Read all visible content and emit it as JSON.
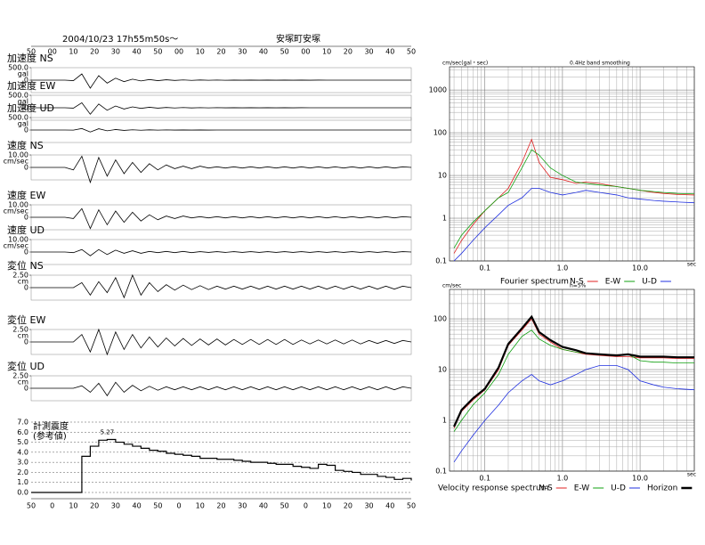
{
  "chart_data": [
    {
      "type": "waveform",
      "title": "2004/10/23 17h55m50s～",
      "subtitle": "安塚町安塚",
      "categories": [
        "50",
        "00",
        "10",
        "20",
        "30",
        "40",
        "50",
        "00",
        "10",
        "20",
        "30",
        "40",
        "50",
        "00",
        "10",
        "20",
        "30",
        "40",
        "50"
      ],
      "xlim": [
        0,
        180
      ],
      "x": [
        0,
        4,
        8,
        12,
        16,
        20,
        24,
        28,
        32,
        36,
        40,
        44,
        48,
        52,
        56,
        60,
        64,
        68,
        72,
        76,
        80,
        84,
        88,
        92,
        96,
        100,
        104,
        108,
        112,
        116,
        120,
        124,
        128,
        132,
        136,
        140,
        144,
        148,
        152,
        156,
        160,
        164,
        168,
        172,
        176,
        180
      ],
      "series": [
        {
          "name": "加速度 NS",
          "unit": "gal",
          "color": "#000000",
          "ylim": [
            -500,
            500
          ],
          "yticks": [
            0,
            {
              "value": 500,
              "label": "500.0"
            }
          ],
          "values": [
            0,
            0,
            0,
            0,
            0,
            -20,
            250,
            -320,
            180,
            -120,
            80,
            -60,
            40,
            -30,
            25,
            -20,
            15,
            -12,
            10,
            -8,
            6,
            -5,
            4,
            -4,
            3,
            -3,
            3,
            -2,
            2,
            -2,
            2,
            -2,
            2,
            -2,
            2,
            -1,
            1,
            -1,
            1,
            -1,
            1,
            -1,
            1,
            -1,
            1,
            0
          ]
        },
        {
          "name": "加速度 EW",
          "unit": "gal",
          "color": "#000000",
          "ylim": [
            -500,
            500
          ],
          "yticks": [
            0,
            {
              "value": 500,
              "label": "500.0"
            }
          ],
          "values": [
            0,
            0,
            0,
            0,
            0,
            -15,
            200,
            -260,
            150,
            -100,
            70,
            -50,
            35,
            -25,
            20,
            -15,
            12,
            -10,
            8,
            -6,
            5,
            -4,
            4,
            -3,
            3,
            -3,
            2,
            -2,
            2,
            -2,
            2,
            -2,
            2,
            -1,
            1,
            -1,
            1,
            -1,
            1,
            -1,
            1,
            -1,
            1,
            -1,
            1,
            0
          ]
        },
        {
          "name": "加速度 UD",
          "unit": "gal",
          "color": "#000000",
          "ylim": [
            -500,
            500
          ],
          "yticks": [
            0,
            {
              "value": 500,
              "label": "500.0"
            }
          ],
          "values": [
            0,
            0,
            0,
            0,
            0,
            -5,
            60,
            -80,
            50,
            -30,
            20,
            -15,
            10,
            -8,
            6,
            -5,
            4,
            -3,
            3,
            -2,
            2,
            -2,
            1,
            -1,
            1,
            -1,
            1,
            -1,
            1,
            -1,
            1,
            -1,
            1,
            -1,
            1,
            -1,
            1,
            -1,
            1,
            -1,
            1,
            -1,
            1,
            -1,
            1,
            0
          ]
        },
        {
          "name": "速度 NS",
          "unit": "cm/sec",
          "color": "#000000",
          "ylim": [
            -10,
            10
          ],
          "yticks": [
            0,
            {
              "value": 10,
              "label": "10.00"
            }
          ],
          "values": [
            0,
            0,
            0,
            0,
            0,
            -2,
            9,
            -12,
            8,
            -7,
            6,
            -5,
            4,
            -4,
            3,
            -2,
            2,
            -1,
            1,
            -1,
            1,
            -0.5,
            0.5,
            -0.5,
            0.5,
            -0.5,
            0.5,
            -0.5,
            0.5,
            -0.5,
            0.5,
            -0.5,
            0.5,
            -0.5,
            0.5,
            -0.5,
            0.5,
            -0.5,
            0.5,
            -0.5,
            0.5,
            -0.5,
            0.5,
            -0.5,
            0.5,
            0
          ]
        },
        {
          "name": "速度 EW",
          "unit": "cm/sec",
          "color": "#000000",
          "ylim": [
            -10,
            10
          ],
          "yticks": [
            0,
            {
              "value": 10,
              "label": "10.00"
            }
          ],
          "values": [
            0,
            0,
            0,
            0,
            0,
            -1,
            7,
            -9,
            6,
            -6,
            5,
            -4,
            4,
            -3,
            2,
            -2,
            1,
            -1,
            1,
            -0.5,
            0.5,
            -0.5,
            0.5,
            -0.5,
            0.5,
            -0.5,
            0.5,
            -0.5,
            0.5,
            -0.5,
            0.5,
            -0.5,
            0.5,
            -0.5,
            0.5,
            -0.5,
            0.5,
            -0.5,
            0.5,
            -0.5,
            0.5,
            -0.5,
            0.5,
            -0.5,
            0.5,
            0
          ]
        },
        {
          "name": "速度 UD",
          "unit": "cm/sec",
          "color": "#000000",
          "ylim": [
            -10,
            10
          ],
          "yticks": [
            0,
            {
              "value": 10,
              "label": "10.00"
            }
          ],
          "values": [
            0,
            0,
            0,
            0,
            0,
            -0.5,
            2,
            -3,
            2,
            -2,
            1.5,
            -1,
            1,
            -1,
            0.5,
            -0.5,
            0.5,
            -0.5,
            0.5,
            -0.5,
            0.3,
            -0.3,
            0.3,
            -0.3,
            0.3,
            -0.3,
            0.3,
            -0.3,
            0.3,
            -0.3,
            0.3,
            -0.3,
            0.3,
            -0.3,
            0.3,
            -0.3,
            0.3,
            -0.3,
            0.3,
            -0.3,
            0.3,
            -0.3,
            0.3,
            -0.3,
            0.3,
            0
          ]
        },
        {
          "name": "変位 NS",
          "unit": "cm",
          "color": "#000000",
          "ylim": [
            -2.5,
            2.5
          ],
          "yticks": [
            0,
            {
              "value": 2.5,
              "label": "2.50"
            }
          ],
          "values": [
            0,
            0,
            0,
            0,
            0,
            0,
            1,
            -1.5,
            1.2,
            -1,
            2,
            -2,
            2.5,
            -1.5,
            1,
            -0.8,
            0.6,
            -0.5,
            0.5,
            -0.4,
            0.4,
            -0.4,
            0.3,
            -0.3,
            0.3,
            -0.3,
            0.3,
            -0.3,
            0.3,
            -0.3,
            0.3,
            -0.3,
            0.3,
            -0.3,
            0.3,
            -0.3,
            0.3,
            -0.3,
            0.3,
            -0.3,
            0.3,
            -0.3,
            0.3,
            -0.3,
            0.3,
            0
          ]
        },
        {
          "name": "変位 EW",
          "unit": "cm",
          "color": "#000000",
          "ylim": [
            -2.5,
            2.5
          ],
          "yticks": [
            0,
            {
              "value": 2.5,
              "label": "2.50"
            }
          ],
          "values": [
            0,
            0,
            0,
            0,
            0,
            0,
            1.5,
            -2,
            2.5,
            -2.5,
            2,
            -1.5,
            1.5,
            -1.2,
            1,
            -1,
            0.8,
            -0.8,
            0.7,
            -0.7,
            0.6,
            -0.6,
            0.6,
            -0.6,
            0.5,
            -0.5,
            0.5,
            -0.5,
            0.5,
            -0.5,
            0.5,
            -0.5,
            0.4,
            -0.4,
            0.4,
            -0.4,
            0.4,
            -0.4,
            0.4,
            -0.4,
            0.3,
            -0.3,
            0.3,
            -0.3,
            0.3,
            0
          ]
        },
        {
          "name": "変位 UD",
          "unit": "cm",
          "color": "#000000",
          "ylim": [
            -2.5,
            2.5
          ],
          "yticks": [
            0,
            {
              "value": 2.5,
              "label": "2.50"
            }
          ],
          "values": [
            0,
            0,
            0,
            0,
            0,
            0,
            0.5,
            -0.8,
            1,
            -1.5,
            1.2,
            -0.8,
            0.6,
            -0.5,
            0.4,
            -0.4,
            0.3,
            -0.3,
            0.3,
            -0.3,
            0.3,
            -0.3,
            0.3,
            -0.3,
            0.3,
            -0.3,
            0.3,
            -0.3,
            0.3,
            -0.3,
            0.3,
            -0.3,
            0.3,
            -0.3,
            0.3,
            -0.3,
            0.3,
            -0.3,
            0.3,
            -0.3,
            0.3,
            -0.3,
            0.3,
            -0.3,
            0.3,
            0
          ]
        }
      ]
    },
    {
      "type": "step",
      "title": "計測震度",
      "subtitle": "(参考値)",
      "peak_label": "5.27",
      "categories": [
        "50",
        "0",
        "10",
        "20",
        "30",
        "40",
        "50",
        "0",
        "10",
        "20",
        "30",
        "40",
        "50",
        "0",
        "10",
        "20",
        "30",
        "40",
        "50"
      ],
      "xlim": [
        0,
        180
      ],
      "x": [
        0,
        4,
        8,
        12,
        16,
        20,
        24,
        28,
        32,
        36,
        40,
        44,
        48,
        52,
        56,
        60,
        64,
        68,
        72,
        76,
        80,
        84,
        88,
        92,
        96,
        100,
        104,
        108,
        112,
        116,
        120,
        124,
        128,
        132,
        136,
        140,
        144,
        148,
        152,
        156,
        160,
        164,
        168,
        172,
        176,
        180
      ],
      "values": [
        0,
        0,
        0,
        0,
        0,
        0,
        3.6,
        4.6,
        5.2,
        5.27,
        5.0,
        4.8,
        4.6,
        4.4,
        4.2,
        4.1,
        3.9,
        3.8,
        3.7,
        3.6,
        3.4,
        3.4,
        3.3,
        3.3,
        3.2,
        3.1,
        3.0,
        3.0,
        2.9,
        2.8,
        2.8,
        2.6,
        2.5,
        2.4,
        2.8,
        2.7,
        2.2,
        2.1,
        2.0,
        1.8,
        1.8,
        1.6,
        1.5,
        1.3,
        1.4,
        1.2
      ],
      "color": "#000000",
      "ylim": [
        0,
        7
      ],
      "yticks": [
        {
          "value": 0,
          "label": "0.0"
        },
        {
          "value": 1,
          "label": "1.0"
        },
        {
          "value": 2,
          "label": "2.0"
        },
        {
          "value": 3,
          "label": "3.0"
        },
        {
          "value": 4,
          "label": "4.0"
        },
        {
          "value": 5,
          "label": "5.0"
        },
        {
          "value": 6,
          "label": "6.0"
        },
        {
          "value": 7,
          "label": "7.0"
        }
      ],
      "grid": true
    },
    {
      "type": "loglog",
      "y_label": "cm/sec(gal・sec)",
      "subtitle": "0.4Hz band smoothing",
      "x_label": "sec",
      "legend_title": "Fourier spectrum",
      "x": [
        0.04,
        0.05,
        0.07,
        0.1,
        0.15,
        0.2,
        0.3,
        0.4,
        0.5,
        0.7,
        1,
        1.5,
        2,
        3,
        5,
        7,
        10,
        15,
        20,
        30,
        50
      ],
      "xlim": [
        0.035,
        50
      ],
      "ylim": [
        0.1,
        3500
      ],
      "xticks": [
        {
          "value": 0.1,
          "label": "0.1"
        },
        {
          "value": 1,
          "label": "1.0"
        },
        {
          "value": 10,
          "label": "10.0"
        }
      ],
      "yticks": [
        0.1,
        1,
        10,
        100,
        1000
      ],
      "log_x": true,
      "log_y": true,
      "grid": true,
      "series": [
        {
          "name": "N-S",
          "color": "#e02020",
          "values": [
            0.15,
            0.3,
            0.7,
            1.5,
            3,
            5,
            20,
            70,
            20,
            9,
            8,
            6.5,
            7,
            6.5,
            5.5,
            5,
            4.5,
            4,
            3.8,
            3.6,
            3.5
          ]
        },
        {
          "name": "E-W",
          "color": "#10a010",
          "values": [
            0.2,
            0.4,
            0.8,
            1.5,
            3,
            4,
            15,
            40,
            30,
            15,
            10,
            7,
            6.5,
            6,
            5.5,
            5,
            4.5,
            4.2,
            4,
            3.8,
            3.7
          ]
        },
        {
          "name": "U-D",
          "color": "#2030e0",
          "values": [
            0.1,
            0.15,
            0.3,
            0.6,
            1.2,
            2,
            3,
            5,
            5,
            4,
            3.5,
            4,
            4.5,
            4,
            3.5,
            3,
            2.8,
            2.6,
            2.5,
            2.4,
            2.3
          ]
        }
      ]
    },
    {
      "type": "loglog",
      "y_label": "cm/sec",
      "subtitle": "h=5%",
      "x_label": "sec",
      "legend_title": "Velocity response spectrum",
      "x": [
        0.04,
        0.05,
        0.07,
        0.1,
        0.15,
        0.2,
        0.3,
        0.4,
        0.5,
        0.7,
        1,
        1.5,
        2,
        3,
        5,
        7,
        10,
        15,
        20,
        30,
        50
      ],
      "xlim": [
        0.035,
        50
      ],
      "ylim": [
        0.1,
        380
      ],
      "xticks": [
        {
          "value": 0.1,
          "label": "0.1"
        },
        {
          "value": 1,
          "label": "1.0"
        },
        {
          "value": 10,
          "label": "10.0"
        }
      ],
      "yticks": [
        0.1,
        1,
        10,
        100
      ],
      "log_x": true,
      "log_y": true,
      "grid": true,
      "series": [
        {
          "name": "N-S",
          "color": "#e02020",
          "values": [
            0.7,
            1.5,
            2.5,
            4,
            10,
            30,
            60,
            100,
            50,
            35,
            25,
            22,
            20,
            19,
            18,
            18,
            17,
            17,
            17,
            16.5,
            16.5
          ]
        },
        {
          "name": "E-W",
          "color": "#10a010",
          "values": [
            0.6,
            1,
            2,
            3.5,
            8,
            20,
            45,
            60,
            40,
            30,
            25,
            22,
            21,
            20,
            19,
            20,
            15,
            14,
            14,
            13.5,
            13.5
          ]
        },
        {
          "name": "U-D",
          "color": "#2030e0",
          "values": [
            0.15,
            0.25,
            0.5,
            1,
            2,
            3.5,
            6,
            8,
            6,
            5,
            6,
            8,
            10,
            12,
            12,
            10,
            6,
            5,
            4.5,
            4.2,
            4
          ]
        },
        {
          "name": "Horizon",
          "color": "#000000",
          "values": [
            0.75,
            1.6,
            2.7,
            4.2,
            11,
            32,
            65,
            110,
            55,
            38,
            28,
            24,
            21,
            20,
            19,
            20,
            18,
            18,
            18,
            17.5,
            17.5
          ]
        }
      ]
    }
  ]
}
